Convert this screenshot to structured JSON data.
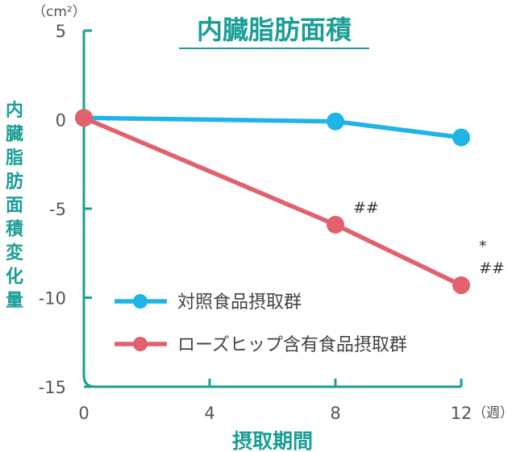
{
  "chart_data": {
    "type": "line",
    "title": "内臓脂肪面積",
    "xlabel": "摂取期間",
    "ylabel": "内臓脂肪面積変化量",
    "y_unit": "（cm²）",
    "x_unit": "（週）",
    "x": [
      0,
      8,
      12
    ],
    "x_ticks": [
      "0",
      "4",
      "8",
      "12"
    ],
    "x_tick_values": [
      0,
      4,
      8,
      12
    ],
    "y_ticks": [
      "5",
      "0",
      "-5",
      "-10",
      "-15"
    ],
    "y_tick_values": [
      5,
      0,
      -5,
      -10,
      -15
    ],
    "xlim": [
      0,
      12
    ],
    "ylim": [
      -15,
      5
    ],
    "grid": false,
    "legend_position": "bottom-left",
    "series": [
      {
        "name": "対照食品摂取群",
        "values": [
          0.1,
          -0.1,
          -1.0
        ],
        "color": "#1eb4e6"
      },
      {
        "name": "ローズヒップ含有食品摂取群",
        "values": [
          0.1,
          -5.9,
          -9.3
        ],
        "color": "#e2616f"
      }
    ],
    "annotations": [
      {
        "series": 1,
        "x": 8,
        "lines": [
          "##"
        ]
      },
      {
        "series": 1,
        "x": 12,
        "lines": [
          "*",
          "##"
        ]
      }
    ]
  }
}
